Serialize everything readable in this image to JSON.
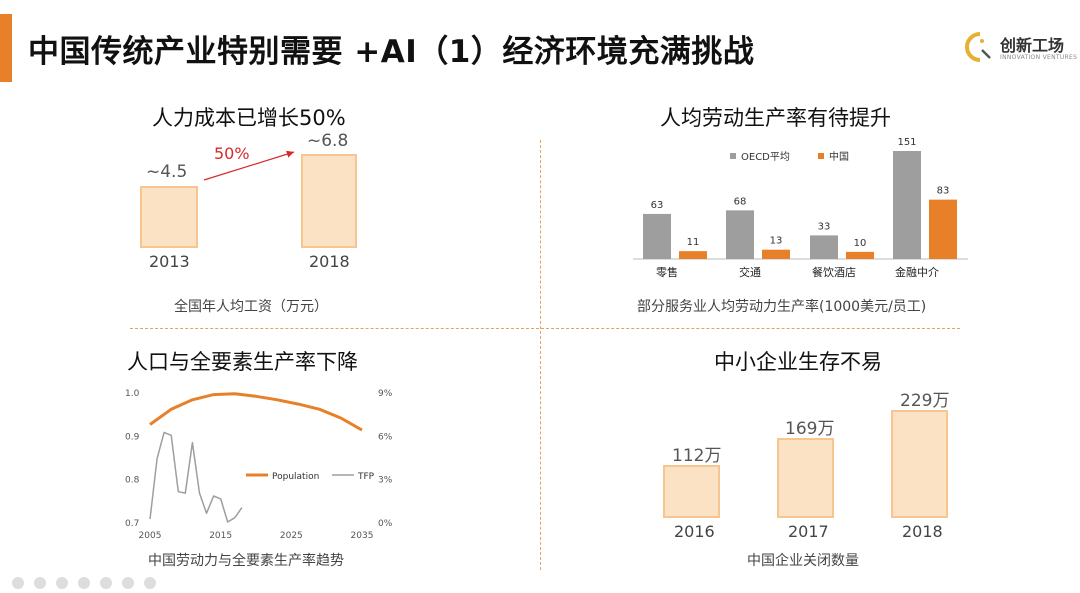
{
  "title": "中国传统产业特别需要 +AI（1）经济环境充满挑战",
  "logo": {
    "name": "创新工场",
    "sub": "INNOVATION VENTURES"
  },
  "colors": {
    "accent": "#e8802a",
    "bar_fill": "#fce2c4",
    "bar_border": "#f7c58f",
    "gray": "#9e9e9e",
    "red": "#d62a2a"
  },
  "chart_data": [
    {
      "type": "bar",
      "title": "人力成本已增长50%",
      "caption": "全国年人均工资（万元）",
      "categories": [
        "2013",
        "2018"
      ],
      "values": [
        4.5,
        6.8
      ],
      "value_labels": [
        "~4.5",
        "~6.8"
      ],
      "annotation": "50%"
    },
    {
      "type": "bar",
      "title": "人均劳动生产率有待提升",
      "caption": "部分服务业人均劳动力生产率(1000美元/员工)",
      "categories": [
        "零售",
        "交通",
        "餐饮酒店",
        "金融中介"
      ],
      "series": [
        {
          "name": "OECD平均",
          "values": [
            63,
            68,
            33,
            151
          ],
          "color": "#9e9e9e"
        },
        {
          "name": "中国",
          "values": [
            11,
            13,
            10,
            83
          ],
          "color": "#e8802a"
        }
      ]
    },
    {
      "type": "line",
      "title": "人口与全要素生产率下降",
      "caption": "中国劳动力与全要素生产率趋势",
      "xticks": [
        "2005",
        "2015",
        "2025",
        "2035"
      ],
      "xlim": [
        2005,
        2035
      ],
      "yticks_left": [
        "0.7",
        "0.8",
        "0.9",
        "1.0"
      ],
      "ylim_left": [
        0.7,
        1.0
      ],
      "yticks_right": [
        "0%",
        "3%",
        "6%",
        "9%"
      ],
      "ylim_right": [
        0,
        9
      ],
      "series": [
        {
          "name": "Population",
          "axis": "left",
          "color": "#e8802a",
          "x": [
            2005,
            2008,
            2011,
            2014,
            2017,
            2020,
            2023,
            2026,
            2029,
            2032,
            2035
          ],
          "y": [
            0.925,
            0.96,
            0.982,
            0.994,
            0.996,
            0.99,
            0.982,
            0.972,
            0.96,
            0.94,
            0.912
          ]
        },
        {
          "name": "TFP",
          "axis": "right",
          "color": "#9e9e9e",
          "x": [
            2005,
            2006,
            2007,
            2008,
            2009,
            2010,
            2011,
            2012,
            2013,
            2014,
            2015,
            2016,
            2017,
            2018
          ],
          "y": [
            0.2,
            4.4,
            6.2,
            6.0,
            2.1,
            2.0,
            5.5,
            2.0,
            0.6,
            1.8,
            1.6,
            0.0,
            0.3,
            1.0
          ]
        }
      ]
    },
    {
      "type": "bar",
      "title": "中小企业生存不易",
      "caption": "中国企业关闭数量",
      "categories": [
        "2016",
        "2017",
        "2018"
      ],
      "values": [
        112,
        169,
        229
      ],
      "value_labels": [
        "112万",
        "169万",
        "229万"
      ]
    }
  ]
}
